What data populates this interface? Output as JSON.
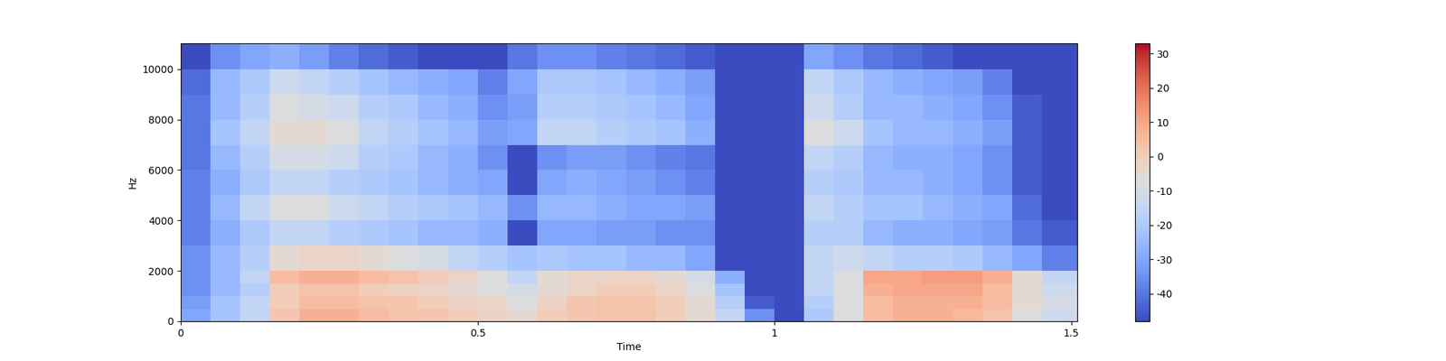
{
  "chart_data": {
    "type": "heatmap",
    "x_label": "Time",
    "y_label": "Hz",
    "xlim": [
      0,
      1.51
    ],
    "xticks": [
      0,
      0.5,
      1,
      1.5
    ],
    "ylim": [
      0,
      11025
    ],
    "yticks": [
      0,
      2000,
      4000,
      6000,
      8000,
      10000
    ],
    "time_edges": [
      0,
      0.05,
      0.1,
      0.15,
      0.2,
      0.25,
      0.3,
      0.35,
      0.4,
      0.45,
      0.5,
      0.55,
      0.6,
      0.65,
      0.7,
      0.75,
      0.8,
      0.85,
      0.9,
      0.95,
      1.0,
      1.05,
      1.1,
      1.15,
      1.2,
      1.25,
      1.3,
      1.35,
      1.4,
      1.45,
      1.51
    ],
    "freq_edges": [
      0,
      500,
      1000,
      1500,
      2000,
      3000,
      4000,
      5000,
      6000,
      7000,
      8000,
      9000,
      10000,
      11025
    ],
    "cells": [
      [
        -30,
        -22,
        -15,
        2,
        8,
        8,
        5,
        3,
        2,
        0,
        -2,
        -5,
        0,
        2,
        3,
        3,
        0,
        -5,
        -15,
        -35,
        -48,
        -20,
        -8,
        5,
        8,
        8,
        6,
        3,
        -8,
        -12
      ],
      [
        -32,
        -22,
        -15,
        0,
        5,
        5,
        3,
        2,
        0,
        -2,
        -3,
        -8,
        -2,
        2,
        3,
        2,
        0,
        -5,
        -18,
        -45,
        -48,
        -18,
        -8,
        5,
        8,
        8,
        8,
        5,
        -5,
        -10
      ],
      [
        -35,
        -25,
        -18,
        0,
        3,
        3,
        0,
        -2,
        -3,
        -5,
        -8,
        -10,
        -5,
        -3,
        0,
        0,
        -3,
        -8,
        -22,
        -48,
        -48,
        -15,
        -8,
        8,
        10,
        10,
        10,
        5,
        -5,
        -12
      ],
      [
        -35,
        -25,
        -15,
        5,
        8,
        8,
        5,
        3,
        0,
        -3,
        -8,
        -15,
        -5,
        -3,
        -3,
        -3,
        -5,
        -10,
        -28,
        -48,
        -48,
        -15,
        -8,
        10,
        10,
        12,
        12,
        8,
        -5,
        -15
      ],
      [
        -35,
        -25,
        -18,
        -5,
        -3,
        -3,
        -5,
        -8,
        -10,
        -15,
        -18,
        -22,
        -20,
        -22,
        -22,
        -25,
        -25,
        -30,
        -48,
        -48,
        -48,
        -15,
        -12,
        -15,
        -18,
        -18,
        -20,
        -25,
        -30,
        -38
      ],
      [
        -38,
        -28,
        -20,
        -15,
        -15,
        -18,
        -20,
        -22,
        -25,
        -25,
        -28,
        -48,
        -30,
        -30,
        -32,
        -32,
        -35,
        -35,
        -48,
        -48,
        -48,
        -18,
        -18,
        -25,
        -28,
        -28,
        -30,
        -32,
        -40,
        -45
      ],
      [
        -38,
        -25,
        -15,
        -8,
        -8,
        -12,
        -15,
        -18,
        -20,
        -22,
        -25,
        -35,
        -25,
        -25,
        -28,
        -30,
        -30,
        -32,
        -48,
        -48,
        -48,
        -15,
        -18,
        -22,
        -22,
        -25,
        -28,
        -30,
        -42,
        -48
      ],
      [
        -38,
        -28,
        -20,
        -15,
        -15,
        -18,
        -20,
        -22,
        -25,
        -28,
        -30,
        -48,
        -30,
        -28,
        -30,
        -32,
        -35,
        -38,
        -48,
        -48,
        -48,
        -18,
        -20,
        -25,
        -25,
        -28,
        -30,
        -35,
        -45,
        -48
      ],
      [
        -40,
        -25,
        -18,
        -10,
        -10,
        -12,
        -18,
        -20,
        -25,
        -28,
        -35,
        -48,
        -35,
        -32,
        -32,
        -35,
        -38,
        -40,
        -48,
        -48,
        -48,
        -15,
        -18,
        -25,
        -28,
        -28,
        -30,
        -35,
        -45,
        -48
      ],
      [
        -40,
        -22,
        -15,
        -5,
        -5,
        -8,
        -15,
        -18,
        -22,
        -25,
        -32,
        -30,
        -15,
        -15,
        -18,
        -20,
        -22,
        -28,
        -48,
        -48,
        -48,
        -8,
        -12,
        -22,
        -25,
        -25,
        -28,
        -32,
        -45,
        -48
      ],
      [
        -40,
        -25,
        -18,
        -8,
        -10,
        -12,
        -18,
        -20,
        -25,
        -28,
        -35,
        -32,
        -18,
        -18,
        -20,
        -22,
        -25,
        -30,
        -48,
        -48,
        -48,
        -12,
        -18,
        -25,
        -25,
        -28,
        -30,
        -35,
        -45,
        -48
      ],
      [
        -42,
        -25,
        -20,
        -12,
        -15,
        -18,
        -22,
        -25,
        -28,
        -30,
        -38,
        -30,
        -20,
        -20,
        -22,
        -25,
        -28,
        -32,
        -48,
        -48,
        -48,
        -15,
        -20,
        -25,
        -28,
        -30,
        -32,
        -38,
        -48,
        -48
      ],
      [
        -48,
        -35,
        -30,
        -28,
        -32,
        -38,
        -42,
        -45,
        -48,
        -48,
        -48,
        -40,
        -35,
        -35,
        -38,
        -40,
        -42,
        -45,
        -48,
        -48,
        -48,
        -30,
        -35,
        -40,
        -42,
        -45,
        -48,
        -48,
        -48,
        -48
      ]
    ],
    "colorbar_range": [
      -48,
      33
    ],
    "colorbar_ticks": [
      -40,
      -30,
      -20,
      -10,
      0,
      10,
      20,
      30
    ]
  }
}
